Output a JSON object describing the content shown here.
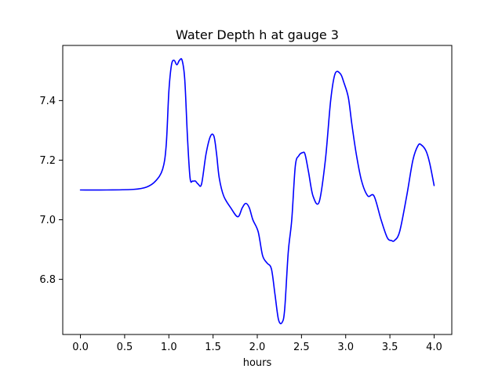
{
  "chart_data": {
    "type": "line",
    "title": "Water Depth h at gauge 3",
    "xlabel": "hours",
    "ylabel": "",
    "xlim": [
      -0.2,
      4.2
    ],
    "ylim": [
      6.615,
      7.585
    ],
    "xticks": [
      0.0,
      0.5,
      1.0,
      1.5,
      2.0,
      2.5,
      3.0,
      3.5,
      4.0
    ],
    "xtick_labels": [
      "0.0",
      "0.5",
      "1.0",
      "1.5",
      "2.0",
      "2.5",
      "3.0",
      "3.5",
      "4.0"
    ],
    "yticks": [
      6.8,
      7.0,
      7.2,
      7.4
    ],
    "ytick_labels": [
      "6.8",
      "7.0",
      "7.2",
      "7.4"
    ],
    "grid": false,
    "series": [
      {
        "name": "",
        "color": "#0000ff",
        "x": [
          0.0,
          0.3,
          0.6,
          0.75,
          0.85,
          0.93,
          0.97,
          1.0,
          1.03,
          1.06,
          1.09,
          1.12,
          1.15,
          1.18,
          1.21,
          1.24,
          1.27,
          1.3,
          1.33,
          1.37,
          1.42,
          1.47,
          1.51,
          1.54,
          1.57,
          1.62,
          1.7,
          1.78,
          1.83,
          1.87,
          1.91,
          1.95,
          2.01,
          2.06,
          2.11,
          2.16,
          2.2,
          2.24,
          2.28,
          2.31,
          2.35,
          2.39,
          2.43,
          2.47,
          2.51,
          2.54,
          2.58,
          2.63,
          2.7,
          2.77,
          2.83,
          2.88,
          2.94,
          2.98,
          3.03,
          3.07,
          3.12,
          3.18,
          3.25,
          3.32,
          3.4,
          3.47,
          3.52,
          3.55,
          3.61,
          3.69,
          3.76,
          3.82,
          3.86,
          3.91,
          3.95,
          4.0
        ],
        "y": [
          7.1,
          7.1,
          7.102,
          7.11,
          7.13,
          7.17,
          7.25,
          7.43,
          7.52,
          7.535,
          7.52,
          7.535,
          7.535,
          7.47,
          7.28,
          7.14,
          7.13,
          7.13,
          7.12,
          7.12,
          7.22,
          7.28,
          7.28,
          7.22,
          7.14,
          7.08,
          7.04,
          7.01,
          7.04,
          7.055,
          7.04,
          7.0,
          6.96,
          6.88,
          6.855,
          6.835,
          6.75,
          6.665,
          6.655,
          6.7,
          6.89,
          7.0,
          7.18,
          7.215,
          7.225,
          7.22,
          7.16,
          7.08,
          7.06,
          7.2,
          7.4,
          7.49,
          7.49,
          7.46,
          7.41,
          7.32,
          7.22,
          7.13,
          7.08,
          7.08,
          7.0,
          6.94,
          6.93,
          6.93,
          6.96,
          7.08,
          7.2,
          7.25,
          7.25,
          7.23,
          7.19,
          7.115
        ]
      }
    ]
  }
}
